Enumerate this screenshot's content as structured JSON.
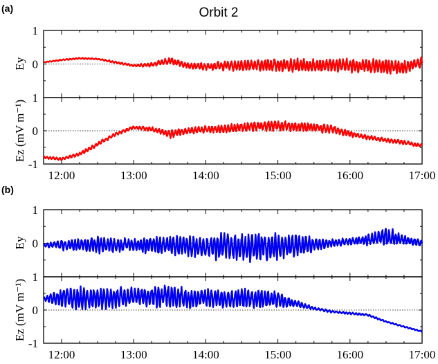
{
  "figure": {
    "title": "Orbit 2",
    "panel_a_label": "(a)",
    "panel_b_label": "(b)",
    "ylabel_top": "Ey",
    "ylabel_bottom": "Ez (mV m⁻¹)"
  },
  "colors": {
    "panel_a_series": "#ff0000",
    "panel_b_series": "#0000ee",
    "axis": "#000000",
    "zero_line": "#000000"
  },
  "chart_data": [
    {
      "type": "line",
      "panel": "(a)",
      "subplot": "Ey",
      "title": "Orbit 2",
      "xlabel": "",
      "ylabel": "Ey",
      "x_ticks": [
        "12:00",
        "13:00",
        "14:00",
        "15:00",
        "16:00",
        "17:00"
      ],
      "xlim": [
        "11:45",
        "17:00"
      ],
      "ylim": [
        -1,
        1
      ],
      "y_ticks": [
        -1,
        0,
        1
      ],
      "zero_reference_line": true,
      "series": [
        {
          "x": [
            "11:45",
            "12:00",
            "12:15",
            "12:30",
            "12:45",
            "13:00",
            "13:15",
            "13:30",
            "13:45",
            "14:00",
            "14:15",
            "14:30",
            "14:45",
            "15:00",
            "15:15",
            "15:30",
            "15:45",
            "16:00",
            "16:15",
            "16:30",
            "16:45",
            "17:00"
          ],
          "y": [
            0.05,
            0.12,
            0.17,
            0.15,
            0.05,
            -0.05,
            -0.02,
            0.1,
            -0.05,
            -0.08,
            -0.05,
            -0.05,
            -0.03,
            -0.03,
            -0.05,
            -0.05,
            -0.03,
            -0.05,
            -0.05,
            -0.08,
            -0.1,
            0.05
          ],
          "oscillation_amplitude": [
            0.01,
            0.02,
            0.02,
            0.02,
            0.03,
            0.03,
            0.06,
            0.1,
            0.08,
            0.1,
            0.14,
            0.16,
            0.18,
            0.2,
            0.2,
            0.2,
            0.2,
            0.2,
            0.2,
            0.2,
            0.18,
            0.15
          ]
        }
      ]
    },
    {
      "type": "line",
      "panel": "(a)",
      "subplot": "Ez",
      "xlabel": "",
      "ylabel": "Ez (mV m⁻¹)",
      "x_ticks": [
        "12:00",
        "13:00",
        "14:00",
        "15:00",
        "16:00",
        "17:00"
      ],
      "xlim": [
        "11:45",
        "17:00"
      ],
      "ylim": [
        -1,
        1
      ],
      "y_ticks": [
        -1,
        0,
        1
      ],
      "zero_reference_line": true,
      "series": [
        {
          "x": [
            "11:45",
            "12:00",
            "12:15",
            "12:30",
            "12:45",
            "13:00",
            "13:15",
            "13:30",
            "13:45",
            "14:00",
            "14:15",
            "14:30",
            "14:45",
            "15:00",
            "15:15",
            "15:30",
            "15:45",
            "16:00",
            "16:15",
            "16:30",
            "16:45",
            "17:00"
          ],
          "y": [
            -0.8,
            -0.85,
            -0.7,
            -0.4,
            -0.1,
            0.1,
            0.05,
            -0.1,
            0.0,
            0.05,
            0.05,
            0.1,
            0.15,
            0.15,
            0.12,
            0.1,
            0.05,
            -0.1,
            -0.2,
            -0.28,
            -0.35,
            -0.45
          ],
          "oscillation_amplitude": [
            0.03,
            0.04,
            0.05,
            0.06,
            0.05,
            0.05,
            0.06,
            0.12,
            0.1,
            0.1,
            0.12,
            0.14,
            0.15,
            0.16,
            0.15,
            0.14,
            0.12,
            0.08,
            0.07,
            0.06,
            0.06,
            0.05
          ]
        }
      ]
    },
    {
      "type": "line",
      "panel": "(b)",
      "subplot": "Ey",
      "xlabel": "",
      "ylabel": "Ey",
      "x_ticks": [
        "12:00",
        "13:00",
        "14:00",
        "15:00",
        "16:00",
        "17:00"
      ],
      "xlim": [
        "11:45",
        "17:00"
      ],
      "ylim": [
        -1,
        1
      ],
      "y_ticks": [
        -1,
        0,
        1
      ],
      "zero_reference_line": true,
      "series": [
        {
          "x": [
            "11:45",
            "12:00",
            "12:15",
            "12:30",
            "12:45",
            "13:00",
            "13:15",
            "13:30",
            "13:45",
            "14:00",
            "14:15",
            "14:30",
            "14:45",
            "15:00",
            "15:15",
            "15:30",
            "15:45",
            "16:00",
            "16:15",
            "16:30",
            "16:45",
            "17:00"
          ],
          "y": [
            -0.05,
            -0.05,
            -0.05,
            -0.05,
            -0.05,
            -0.05,
            -0.05,
            -0.05,
            -0.1,
            -0.1,
            -0.1,
            -0.1,
            -0.1,
            -0.1,
            -0.05,
            -0.05,
            0.0,
            0.05,
            0.1,
            0.2,
            0.1,
            0.0
          ],
          "oscillation_amplitude": [
            0.05,
            0.15,
            0.2,
            0.25,
            0.2,
            0.2,
            0.25,
            0.3,
            0.3,
            0.35,
            0.4,
            0.45,
            0.45,
            0.4,
            0.35,
            0.2,
            0.12,
            0.1,
            0.15,
            0.3,
            0.15,
            0.1
          ]
        }
      ]
    },
    {
      "type": "line",
      "panel": "(b)",
      "subplot": "Ez",
      "xlabel": "",
      "ylabel": "Ez (mV m⁻¹)",
      "x_ticks": [
        "12:00",
        "13:00",
        "14:00",
        "15:00",
        "16:00",
        "17:00"
      ],
      "xlim": [
        "11:45",
        "17:00"
      ],
      "ylim": [
        -1,
        1
      ],
      "y_ticks": [
        -1,
        0,
        1
      ],
      "zero_reference_line": true,
      "series": [
        {
          "x": [
            "11:45",
            "12:00",
            "12:15",
            "12:30",
            "12:45",
            "13:00",
            "13:15",
            "13:30",
            "13:45",
            "14:00",
            "14:15",
            "14:30",
            "14:45",
            "15:00",
            "15:15",
            "15:30",
            "15:45",
            "16:00",
            "16:15",
            "16:30",
            "16:45",
            "17:00"
          ],
          "y": [
            0.35,
            0.35,
            0.35,
            0.35,
            0.35,
            0.4,
            0.4,
            0.4,
            0.35,
            0.35,
            0.35,
            0.35,
            0.35,
            0.3,
            0.2,
            0.05,
            -0.05,
            -0.1,
            -0.15,
            -0.35,
            -0.5,
            -0.65
          ],
          "oscillation_amplitude": [
            0.05,
            0.3,
            0.35,
            0.35,
            0.3,
            0.3,
            0.3,
            0.35,
            0.3,
            0.3,
            0.3,
            0.3,
            0.3,
            0.25,
            0.1,
            0.05,
            0.03,
            0.03,
            0.03,
            0.02,
            0.02,
            0.02
          ]
        }
      ]
    }
  ]
}
